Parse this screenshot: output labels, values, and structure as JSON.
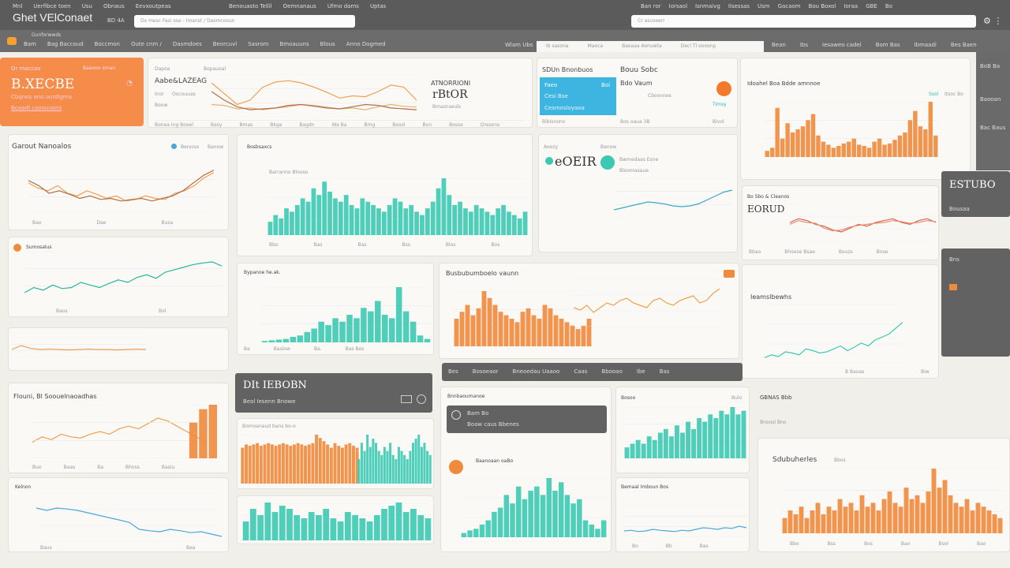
{
  "colors": {
    "orange": "#f58c4a",
    "teal": "#3cc9b4",
    "blue": "#3db5e0",
    "dark": "#5b5b5b",
    "line_blue": "#4aa8d8",
    "red": "#d9644a"
  },
  "topbar": {
    "title": "Ghet VElConaet",
    "subtitle": "BD 4A",
    "menu": [
      "Mnl",
      "Uerfibce toen",
      "Usu",
      "Obnaus",
      "Eevxoutpeas"
    ],
    "menu_right": [
      "Benouasto Tellil",
      "Oemnanaus",
      "Ufmo dams",
      "Uptas"
    ],
    "search_left_placeholder": "Dx mesc Fasi ose - Imanst / Dasmcooun",
    "search_right_placeholder": "Cr ascoeerr",
    "right_menu": [
      "Ban ror",
      "Iorsaol",
      "Isnmaivg",
      "Ilsessas",
      "Usm",
      "Gacaom",
      "Bou Boxol",
      "Ioraa",
      "GBE",
      "Bo"
    ]
  },
  "navbar": {
    "tabs": [
      "Bam",
      "Bag Baccoud",
      "Boccmon",
      "Oute cnm /",
      "Dasmdoes",
      "Beorcuvl",
      "Sasrom",
      "Bmoauuns",
      "Blous",
      "Anno Dogmed"
    ],
    "sub_label": "Gunforwwds",
    "center_tabs": [
      "Wlam Ubs",
      "Ib sasona",
      "Maoca",
      "Baoaaa Aonuwta",
      "Deci Tl  oooonp"
    ],
    "right_tabs": [
      "Bean",
      "Ibs",
      "Iesaweo cadel",
      "Bom Bas",
      "Ibmaadi",
      "Bes Baen"
    ]
  },
  "kpi": {
    "label": "Or maccos",
    "badge": "Baaooo Ionan",
    "value": "B.XECBE",
    "desc": "Cbqnos ano.uurdlgma",
    "link": "Boaadl caoouuons"
  },
  "line_panel": {
    "label": "Dapoa",
    "title": "Aabe&LAZEAG",
    "sub1": "Inor",
    "sub2": "Oocouuas",
    "sub3": "Boow",
    "tag": "Bopauoal",
    "right_title": "ATNORRIONI",
    "right_value": "rBtOR",
    "right_sub": "Bmasnseuls",
    "footer": [
      "Bonea Ing Boeel",
      "Basy",
      "Bmas",
      "Bkga",
      "Bagdn",
      "Wa Ba",
      "Bmg",
      "Besol",
      "Bon",
      "Bosse",
      "Dresons"
    ]
  },
  "info_card": {
    "title1": "SDUn Bnonbuos",
    "title2": "Bouu Sobc",
    "blue_title": "Faeo",
    "blue_badge": "Boi",
    "blue_line1": "Cesi Bse",
    "blue_link": "Cesmosloyaoa",
    "value_label": "Bdo Vaum",
    "sub": "Cboonnes",
    "footer": [
      "Bibisnono",
      "Bos oaua 3B",
      "Bivol"
    ],
    "orange_note": "Timsy"
  },
  "panels": {
    "p4": {
      "title": "Idoahel Boa Bdde amnnoe",
      "tag": "Ssol",
      "tag2": "Itsoc Bo"
    },
    "p5": {
      "title": "Garout Nanoalos",
      "legend": "Bersoss",
      "legend2": "Banow",
      "ticks": [
        "Bao",
        "Dae",
        "Busa"
      ]
    },
    "p6": {
      "title": "Bosbsaxcs",
      "sub": "Barranno Blooso",
      "ticks": [
        "Bbo",
        "Bas",
        "Bas",
        "Bss",
        "Blos",
        "Bos"
      ]
    },
    "p7": {
      "title": "Aoozy",
      "sub": "Banow",
      "big": "eOEIR",
      "circle_label": "Bwmedaas Esne",
      "sub2": "Bloomasaue"
    },
    "p8": {
      "title": "Bo Sbo & Cleanos",
      "big": "EORUD",
      "footer": [
        "Bbao",
        "Bhoese Bsae",
        "Beuzs",
        "Bose"
      ]
    },
    "p9": {
      "title": "Sumosalus",
      "ticks": [
        "Baos",
        "Bol"
      ]
    },
    "p10": {
      "title": "Bypanoe he.ak.",
      "ticks": [
        "Ba",
        "Basiow",
        "Ba.",
        "Bas Bes"
      ]
    },
    "p11": {
      "title": "Busbubumboelo vaunn"
    },
    "p12": {
      "title": "Ieamslbewhs",
      "ticks": [
        "B Baoas",
        "Biw"
      ]
    },
    "dark_card": {
      "title": "DIt IEBOBN",
      "sub": "Beol  Iesenn Bnowe"
    },
    "toolbar": {
      "items": [
        "Bes",
        "Bosoeaor",
        "Bneoedau Uaaoo",
        "Caas",
        "Bbooao",
        "Ibe",
        "Bas"
      ]
    },
    "p13": {
      "title": "Flouni, Bl Soouelnaoadhas",
      "ticks": [
        "Buo",
        "Baas",
        "Ba",
        "Bhoss",
        "Basiu"
      ]
    },
    "p14": {
      "title": "Kelnon",
      "ticks": [
        "Baus",
        "Baa"
      ]
    },
    "p15": {
      "title": "Bomoanaud bans bo-o"
    },
    "p17": {
      "title": "Bnnbaoumanoe",
      "dark_title": "Bam Bo",
      "dark_sub": "Boaw caus Bbenes",
      "circle_label": "Baanoaan oaBo"
    },
    "p18": {
      "title": "Bosoo",
      "tag": "Bulo",
      "ticks": [
        "Bo",
        "Bb",
        "Bas"
      ]
    },
    "p19": {
      "title": "Bemaal Imboun Bos"
    },
    "p20": {
      "title": "GBNAS Bbb",
      "sub": "Bnoosl  Bno",
      "chart_title": "Sdubuherles",
      "chart_tag": "Bbos",
      "ticks": [
        "Bbo",
        "Bss",
        "Bos",
        "Bao",
        "Bsol",
        "Bao"
      ]
    },
    "side": {
      "value": "ESTUBO",
      "labels": [
        "BoB Ba",
        "Baooan",
        "Bac Baus",
        "Bousaa",
        "Bns"
      ]
    }
  },
  "chart_data": [
    {
      "id": "c_top",
      "type": "line",
      "series": [
        {
          "color": "#f0a050",
          "values": [
            80,
            55,
            30,
            40,
            70,
            82,
            85,
            80,
            70,
            58,
            45,
            50,
            48,
            60,
            75,
            70,
            40
          ]
        },
        {
          "color": "#e8b070",
          "values": [
            30,
            28,
            20,
            22,
            18,
            22,
            25,
            30,
            28,
            24,
            20,
            22,
            18,
            25,
            30,
            26,
            24
          ]
        },
        {
          "color": "#b07050",
          "values": [
            60,
            40,
            25,
            18,
            20,
            22,
            28,
            30,
            26,
            22,
            20,
            25,
            30,
            28,
            22,
            20,
            18
          ]
        }
      ]
    },
    {
      "id": "c_p4",
      "type": "bar",
      "color": "#f08a3c",
      "values": [
        10,
        15,
        80,
        30,
        55,
        40,
        45,
        50,
        60,
        70,
        35,
        25,
        20,
        15,
        18,
        22,
        25,
        30,
        20,
        18,
        15,
        25,
        30,
        20,
        22,
        28,
        35,
        40,
        60,
        75,
        50,
        45,
        90,
        35
      ]
    },
    {
      "id": "c_p5",
      "type": "line",
      "series": [
        {
          "color": "#f0a050",
          "values": [
            60,
            50,
            45,
            55,
            40,
            35,
            45,
            38,
            30,
            35,
            25,
            28,
            35,
            30,
            28,
            40,
            45,
            55,
            70,
            80
          ]
        },
        {
          "color": "#b07050",
          "values": [
            65,
            55,
            40,
            45,
            38,
            30,
            35,
            28,
            30,
            25,
            28,
            30,
            25,
            30,
            35,
            45,
            60,
            75,
            85
          ]
        }
      ]
    },
    {
      "id": "c_p6",
      "type": "bar",
      "color": "#3cc9b4",
      "values": [
        20,
        30,
        25,
        40,
        35,
        45,
        55,
        50,
        70,
        60,
        80,
        65,
        55,
        50,
        60,
        45,
        40,
        55,
        50,
        45,
        40,
        35,
        45,
        55,
        50,
        40,
        45,
        35,
        30,
        40,
        50,
        70,
        85,
        60,
        45,
        50,
        40,
        35,
        45,
        40,
        35,
        30,
        40,
        45,
        35,
        30,
        25,
        35
      ]
    },
    {
      "id": "c_p7",
      "type": "line",
      "series": [
        {
          "color": "#3aa8c8",
          "values": [
            20,
            25,
            30,
            35,
            40,
            38,
            35,
            30,
            28,
            30,
            35,
            45,
            55,
            65,
            70
          ]
        }
      ]
    },
    {
      "id": "c_p8",
      "type": "line",
      "series": [
        {
          "color": "#d9644a",
          "values": [
            50,
            60,
            55,
            45,
            40,
            30,
            25,
            35,
            45,
            40,
            50,
            55,
            60,
            50,
            45,
            55,
            60,
            50
          ]
        },
        {
          "color": "#e89070",
          "values": [
            45,
            55,
            50,
            48,
            35,
            28,
            30,
            38,
            42,
            45,
            48,
            50,
            55,
            52,
            48,
            50,
            55,
            52
          ]
        }
      ]
    },
    {
      "id": "c_p9",
      "type": "line",
      "series": [
        {
          "color": "#2ab5a0",
          "values": [
            20,
            30,
            25,
            35,
            28,
            30,
            40,
            35,
            30,
            38,
            45,
            40,
            50,
            55,
            48,
            60,
            65,
            70,
            75,
            78,
            80,
            72
          ]
        }
      ]
    },
    {
      "id": "c_p9b",
      "type": "line",
      "series": [
        {
          "color": "#e8a060",
          "values": [
            40,
            60,
            45,
            40,
            42,
            40,
            38,
            40,
            42,
            40,
            40,
            38,
            40,
            42,
            40
          ]
        }
      ]
    },
    {
      "id": "c_p10",
      "type": "bar",
      "color": "#3cc9b4",
      "values": [
        2,
        3,
        4,
        5,
        8,
        10,
        15,
        20,
        30,
        25,
        35,
        30,
        40,
        35,
        50,
        45,
        60,
        40,
        35,
        80,
        45,
        30,
        10,
        5
      ]
    },
    {
      "id": "c_p11",
      "type": "bar",
      "color": "#f08a3c",
      "values": [
        40,
        50,
        60,
        45,
        55,
        80,
        70,
        60,
        50,
        45,
        40,
        35,
        50,
        55,
        45,
        40,
        60,
        55,
        45,
        40,
        35,
        30,
        25,
        30,
        40
      ]
    },
    {
      "id": "c_p11l",
      "type": "line",
      "series": [
        {
          "color": "#f0a050",
          "values": [
            40,
            35,
            45,
            30,
            40,
            50,
            45,
            55,
            60,
            50,
            45,
            40,
            55,
            60,
            50,
            45,
            55,
            60,
            65,
            50,
            55,
            70,
            80
          ]
        }
      ]
    },
    {
      "id": "c_p12",
      "type": "line",
      "series": [
        {
          "color": "#3cc9b4",
          "values": [
            10,
            15,
            12,
            20,
            18,
            15,
            25,
            22,
            18,
            20,
            25,
            30,
            22,
            28,
            35,
            30,
            40,
            45,
            50,
            60,
            70
          ]
        }
      ]
    },
    {
      "id": "c_p13",
      "type": "line",
      "series": [
        {
          "color": "#f0a050",
          "values": [
            30,
            40,
            35,
            45,
            40,
            38,
            45,
            50,
            45,
            55,
            60,
            55,
            65,
            75,
            70,
            60,
            50,
            40,
            30
          ]
        }
      ]
    },
    {
      "id": "c_p13b",
      "type": "bar",
      "color": "#f08a3c",
      "values": [
        0,
        0,
        0,
        0,
        0,
        0,
        0,
        0,
        0,
        0,
        0,
        0,
        0,
        0,
        0,
        0,
        40,
        55,
        60
      ]
    },
    {
      "id": "c_p14",
      "type": "line",
      "series": [
        {
          "color": "#4aa8d8",
          "values": [
            70,
            65,
            70,
            68,
            65,
            60,
            55,
            50,
            45,
            40,
            25,
            22,
            20,
            25,
            22,
            18,
            20,
            15,
            10
          ]
        }
      ]
    },
    {
      "id": "c_p15",
      "type": "bar",
      "color": "#f08a3c",
      "values": [
        55,
        60,
        58,
        60,
        62,
        58,
        60,
        62,
        60,
        58,
        60,
        62,
        60,
        58,
        60,
        62,
        60,
        58,
        60,
        62,
        75,
        70,
        65,
        60,
        55,
        62,
        58,
        55,
        60,
        62,
        58,
        55
      ]
    },
    {
      "id": "c_p16",
      "type": "bar",
      "color": "#3cc9b4",
      "values": [
        30,
        50,
        40,
        60,
        45,
        55,
        50,
        40,
        35,
        45,
        40,
        50,
        35,
        30,
        45,
        40,
        35,
        30,
        40,
        50,
        55,
        60,
        45,
        50,
        40,
        35
      ]
    },
    {
      "id": "c_p17",
      "type": "bar",
      "color": "#3cc9b4",
      "values": [
        5,
        8,
        10,
        15,
        20,
        30,
        35,
        50,
        40,
        60,
        45,
        55,
        60,
        50,
        70,
        55,
        65,
        50,
        40,
        45,
        20,
        15,
        10,
        20
      ]
    },
    {
      "id": "c_p18",
      "type": "bar",
      "color": "#3cc9b4",
      "values": [
        15,
        20,
        25,
        20,
        30,
        25,
        35,
        40,
        30,
        45,
        35,
        50,
        40,
        55,
        50,
        60,
        55,
        65,
        60,
        70,
        60,
        65
      ]
    },
    {
      "id": "c_p19",
      "type": "line",
      "series": [
        {
          "color": "#4aa8d8",
          "values": [
            20,
            22,
            18,
            20,
            25,
            22,
            20,
            18,
            22,
            20,
            25,
            30,
            28,
            25,
            30,
            28,
            35,
            30
          ]
        }
      ]
    },
    {
      "id": "c_p20",
      "type": "bar",
      "color": "#f08a3c",
      "values": [
        20,
        30,
        25,
        35,
        20,
        30,
        40,
        25,
        35,
        30,
        45,
        35,
        40,
        30,
        50,
        35,
        40,
        30,
        45,
        55,
        40,
        35,
        60,
        45,
        50,
        40,
        55,
        85,
        60,
        70,
        50,
        40,
        35,
        45,
        30,
        40,
        35,
        30,
        25,
        20
      ]
    }
  ]
}
